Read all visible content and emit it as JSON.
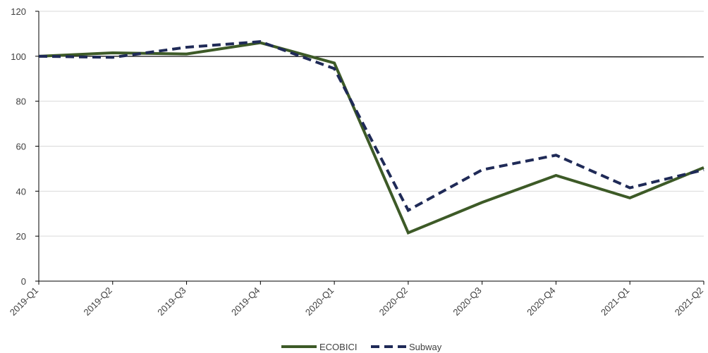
{
  "chart_data": {
    "type": "line",
    "title": "",
    "xlabel": "",
    "ylabel": "",
    "categories": [
      "2019-Q1",
      "2019-Q2",
      "2019-Q3",
      "2019-Q4",
      "2020-Q1",
      "2020-Q2",
      "2020-Q3",
      "2020-Q4",
      "2021-Q1",
      "2021-Q2"
    ],
    "ylim": [
      0,
      120
    ],
    "yticks": [
      0,
      20,
      40,
      60,
      80,
      100,
      120
    ],
    "grid": true,
    "reference_line": 100,
    "legend_position": "bottom",
    "series": [
      {
        "name": "ECOBICI",
        "style": "solid",
        "color": "#3d5a27",
        "values": [
          100,
          101.5,
          101,
          106,
          97,
          21.5,
          35,
          47,
          37,
          50.5
        ]
      },
      {
        "name": "Subway",
        "style": "dashed",
        "color": "#1f2a57",
        "values": [
          100,
          99.5,
          104,
          106.5,
          94.5,
          31.5,
          49.5,
          56,
          41.5,
          49.5
        ]
      }
    ]
  }
}
